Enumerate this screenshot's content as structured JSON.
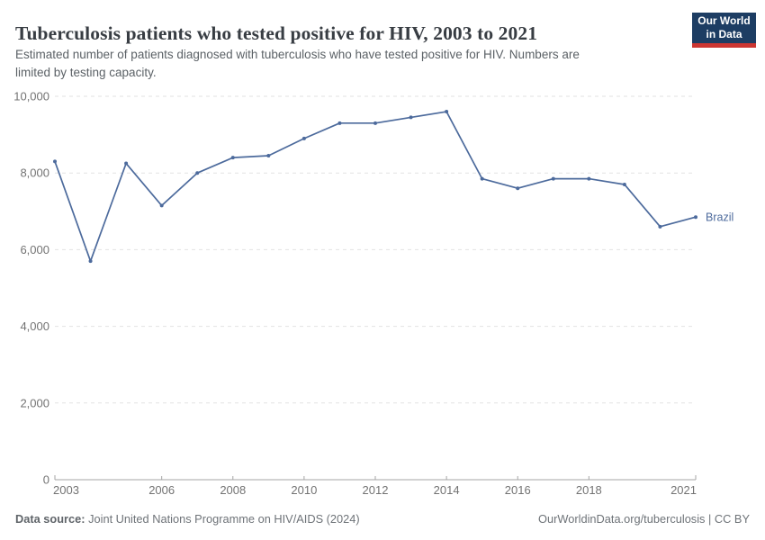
{
  "header": {
    "title": "Tuberculosis patients who tested positive for HIV, 2003 to 2021",
    "logo": {
      "line1": "Our World",
      "line2": "in Data"
    },
    "subtitle_lines": {
      "0": "Estimated number of patients diagnosed with tuberculosis who have tested positive for HIV. Numbers are",
      "1": "limited by testing capacity."
    }
  },
  "chart_data": {
    "type": "line",
    "title": "Tuberculosis patients who tested positive for HIV, 2003 to 2021",
    "xlabel": "",
    "ylabel": "",
    "xlim": [
      2003,
      2021
    ],
    "ylim": [
      0,
      10000
    ],
    "grid": "horizontal-dashed",
    "legend_position": "end-of-line-label",
    "x": [
      2003,
      2004,
      2005,
      2006,
      2007,
      2008,
      2009,
      2010,
      2011,
      2012,
      2013,
      2014,
      2015,
      2016,
      2017,
      2018,
      2019,
      2020,
      2021
    ],
    "series": [
      {
        "name": "Brazil",
        "color": "#4c6a9c",
        "values": [
          8300,
          5700,
          8250,
          7150,
          8000,
          8400,
          8450,
          8900,
          9300,
          9300,
          9450,
          9600,
          7850,
          7600,
          7850,
          7850,
          7700,
          6600,
          6850
        ]
      }
    ],
    "x_ticks": [
      2003,
      2006,
      2008,
      2010,
      2012,
      2014,
      2016,
      2018,
      2021
    ],
    "y_ticks": [
      0,
      2000,
      4000,
      6000,
      8000,
      10000
    ],
    "colors": {
      "gridline": "#e2e2e2",
      "axis": "#a5a5a5",
      "tick_label": "#737373"
    }
  },
  "footer": {
    "datasource_label": "Data source:",
    "datasource_text": "Joint United Nations Programme on HIV/AIDS (2024)",
    "rights": "OurWorldinData.org/tuberculosis | CC BY"
  }
}
